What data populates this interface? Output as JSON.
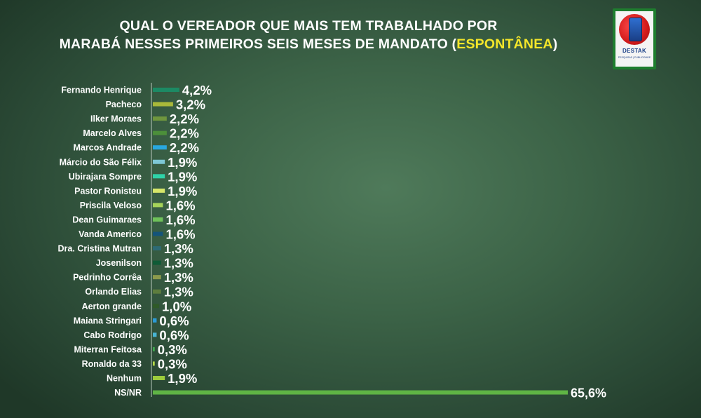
{
  "title": {
    "line1": "QUAL O VEREADOR QUE MAIS TEM TRABALHADO POR",
    "line2_prefix": "MARABÁ NESSES PRIMEIROS SEIS MESES DE MANDATO (",
    "line2_highlight": "ESPONTÂNEA",
    "line2_suffix": ")"
  },
  "logo": {
    "name": "DESTAK",
    "tagline": "PESQUISAS | PUBLICIDADE"
  },
  "colors": {
    "highlight": "#f4e62a",
    "logo_green": "#1e7d2e"
  },
  "chart_data": {
    "type": "bar",
    "orientation": "horizontal",
    "unit": "%",
    "categories": [
      "Fernando Henrique",
      "Pacheco",
      "Ilker Moraes",
      "Marcelo Alves",
      "Marcos Andrade",
      "Márcio do São Félix",
      "Ubirajara Sompre",
      "Pastor Ronisteu",
      "Priscila Veloso",
      "Dean Guimaraes",
      "Vanda Americo",
      "Dra. Cristina Mutran",
      "Josenilson",
      "Pedrinho Corrêa",
      "Orlando Elias",
      "Aerton grande",
      "Maiana Stringari",
      "Cabo Rodrigo",
      "Miterran Feitosa",
      "Ronaldo da 33",
      "Nenhum",
      "NS/NR"
    ],
    "values": [
      4.2,
      3.2,
      2.2,
      2.2,
      2.2,
      1.9,
      1.9,
      1.9,
      1.6,
      1.6,
      1.6,
      1.3,
      1.3,
      1.3,
      1.3,
      1.0,
      0.6,
      0.6,
      0.3,
      0.3,
      1.9,
      65.6
    ],
    "labels": [
      "4,2%",
      "3,2%",
      "2,2%",
      "2,2%",
      "2,2%",
      "1,9%",
      "1,9%",
      "1,9%",
      "1,6%",
      "1,6%",
      "1,6%",
      "1,3%",
      "1,3%",
      "1,3%",
      "1,3%",
      "1,0%",
      "0,6%",
      "0,6%",
      "0,3%",
      "0,3%",
      "1,9%",
      "65,6%"
    ],
    "bar_colors": [
      "#1c8a64",
      "#a9b93a",
      "#6f963e",
      "#4c8f3a",
      "#29a8df",
      "#7ec8d6",
      "#2fd3a8",
      "#d6e66a",
      "#a6d45a",
      "#6fc25a",
      "#14547a",
      "#2e6a74",
      "#0f5b36",
      "#8c9a4c",
      "#5e7d3e",
      "#2f5a28",
      "#2b9ad6",
      "#48b4d4",
      "#3fa850",
      "#b4d84a",
      "#9ccb3c",
      "#5fb445"
    ],
    "xlim": [
      0,
      65.6
    ],
    "grid": false,
    "legend": "none"
  }
}
